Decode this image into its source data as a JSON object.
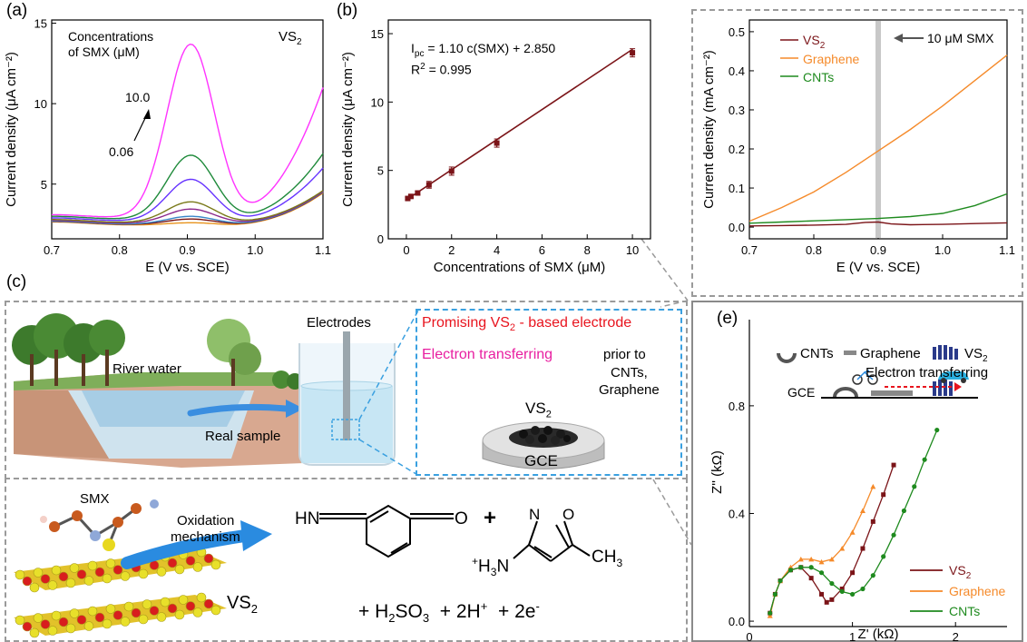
{
  "panels": {
    "a": "(a)",
    "b": "(b)",
    "c": "(c)",
    "e": "(e)"
  },
  "colors": {
    "vs2": "#7b1418",
    "graphene": "#f58a2a",
    "cnts": "#1e8a1e",
    "fitline": "#7b1418",
    "magenta": "#ff33ff",
    "red_text": "#e8141e",
    "pink_text": "#e81ea0",
    "blue_dash": "#3aa0e0",
    "gray_bar": "#c8c8c8"
  },
  "chart_data": [
    {
      "id": "a",
      "type": "line",
      "xlabel": "E (V vs. SCE)",
      "ylabel": "Current density (μA cm⁻²)",
      "xlim": [
        0.7,
        1.1
      ],
      "ylim": [
        1.6,
        15.2
      ],
      "xticks": [
        0.7,
        0.8,
        0.9,
        1.0,
        1.1
      ],
      "yticks": [
        5,
        10,
        15
      ],
      "annotations": {
        "title_line1": "Concentrations",
        "title_line2": "of SMX (μM)",
        "material": "VS",
        "material_sub": "2",
        "high": "10.0",
        "low": "0.06"
      },
      "series_style": {
        "peak_center": 0.905,
        "peak_sigma": 0.035
      },
      "series": [
        {
          "color": "#e8941e",
          "base": 2.45,
          "peak": 0.15,
          "tail": 4.45
        },
        {
          "color": "#7a1616",
          "base": 2.48,
          "peak": 0.35,
          "tail": 4.5
        },
        {
          "color": "#3a86c8",
          "base": 2.5,
          "peak": 0.5,
          "tail": 4.52
        },
        {
          "color": "#8c2a8c",
          "base": 2.55,
          "peak": 0.9,
          "tail": 4.55
        },
        {
          "color": "#7a7a1a",
          "base": 2.6,
          "peak": 1.3,
          "tail": 4.6
        },
        {
          "color": "#6633ff",
          "base": 2.7,
          "peak": 2.6,
          "tail": 6.0
        },
        {
          "color": "#1e8a3a",
          "base": 2.8,
          "peak": 4.0,
          "tail": 6.9
        },
        {
          "color": "#ff33ff",
          "base": 2.9,
          "peak": 10.8,
          "tail": 11.0
        }
      ]
    },
    {
      "id": "b",
      "type": "scatter",
      "xlabel": "Concentrations of SMX (μM)",
      "ylabel": "Current density (μA cm⁻²)",
      "xlim": [
        -0.8,
        10.8
      ],
      "ylim": [
        0,
        16
      ],
      "xticks": [
        0,
        2,
        4,
        6,
        8,
        10
      ],
      "yticks": [
        0,
        5,
        10,
        15
      ],
      "equation": "I",
      "equation_sub": "pc",
      "equation_rest": " = 1.10 c(SMX) + 2.850",
      "r2": "R",
      "r2_sup": "2",
      "r2_rest": " = 0.995",
      "fit": {
        "slope": 1.1,
        "intercept": 2.85
      },
      "x": [
        0.06,
        0.2,
        0.5,
        1.0,
        2.0,
        4.0,
        10.0
      ],
      "y": [
        2.95,
        3.1,
        3.35,
        3.95,
        4.95,
        7.0,
        13.6
      ],
      "err": [
        0.1,
        0.1,
        0.15,
        0.25,
        0.3,
        0.3,
        0.3
      ]
    },
    {
      "id": "d",
      "type": "line",
      "xlabel": "E (V vs. SCE)",
      "ylabel": "Current density (mA cm⁻²)",
      "xlim": [
        0.7,
        1.1
      ],
      "ylim": [
        -0.03,
        0.53
      ],
      "xticks": [
        0.7,
        0.8,
        0.9,
        1.0,
        1.1
      ],
      "yticks": [
        0.0,
        0.1,
        0.2,
        0.3,
        0.4,
        0.5
      ],
      "marker_label": "10 μM SMX",
      "marker_x": 0.9,
      "series": [
        {
          "name": "VS",
          "name_sub": "2",
          "color": "#7b1418",
          "x": [
            0.7,
            0.75,
            0.8,
            0.85,
            0.88,
            0.9,
            0.92,
            0.95,
            1.0,
            1.05,
            1.1
          ],
          "y": [
            0.003,
            0.004,
            0.005,
            0.007,
            0.012,
            0.013,
            0.008,
            0.006,
            0.007,
            0.009,
            0.011
          ]
        },
        {
          "name": "Graphene",
          "color": "#f58a2a",
          "x": [
            0.7,
            0.75,
            0.8,
            0.85,
            0.9,
            0.95,
            1.0,
            1.05,
            1.1
          ],
          "y": [
            0.015,
            0.05,
            0.09,
            0.14,
            0.195,
            0.25,
            0.31,
            0.375,
            0.44
          ]
        },
        {
          "name": "CNTs",
          "color": "#1e8a1e",
          "x": [
            0.7,
            0.75,
            0.8,
            0.85,
            0.9,
            0.95,
            1.0,
            1.05,
            1.1
          ],
          "y": [
            0.01,
            0.013,
            0.016,
            0.019,
            0.022,
            0.027,
            0.035,
            0.055,
            0.085
          ]
        }
      ]
    },
    {
      "id": "e",
      "type": "scatter",
      "xlabel": "Z' (kΩ)",
      "ylabel": "Z'' (kΩ)",
      "xlim": [
        0,
        2.5
      ],
      "ylim": [
        -0.02,
        1.12
      ],
      "xticks": [
        0,
        1,
        2
      ],
      "yticks": [
        0.0,
        0.4,
        0.8
      ],
      "series": [
        {
          "name": "VS",
          "name_sub": "2",
          "color": "#7b1418",
          "marker": "square",
          "x": [
            0.2,
            0.25,
            0.3,
            0.4,
            0.5,
            0.6,
            0.7,
            0.75,
            0.8,
            0.9,
            1.0,
            1.1,
            1.2,
            1.3,
            1.4
          ],
          "y": [
            0.03,
            0.1,
            0.15,
            0.19,
            0.2,
            0.16,
            0.1,
            0.07,
            0.08,
            0.12,
            0.18,
            0.27,
            0.37,
            0.47,
            0.58
          ]
        },
        {
          "name": "Graphene",
          "color": "#f58a2a",
          "marker": "triangle",
          "x": [
            0.2,
            0.25,
            0.3,
            0.4,
            0.5,
            0.6,
            0.7,
            0.8,
            0.9,
            1.0,
            1.1,
            1.2
          ],
          "y": [
            0.02,
            0.1,
            0.15,
            0.2,
            0.23,
            0.23,
            0.22,
            0.23,
            0.27,
            0.33,
            0.41,
            0.5
          ]
        },
        {
          "name": "CNTs",
          "color": "#1e8a1e",
          "marker": "circle",
          "x": [
            0.2,
            0.25,
            0.3,
            0.4,
            0.5,
            0.6,
            0.7,
            0.8,
            0.9,
            1.0,
            1.1,
            1.2,
            1.3,
            1.4,
            1.5,
            1.6,
            1.7,
            1.82
          ],
          "y": [
            0.03,
            0.1,
            0.15,
            0.19,
            0.2,
            0.2,
            0.18,
            0.14,
            0.11,
            0.1,
            0.12,
            0.17,
            0.24,
            0.32,
            0.41,
            0.5,
            0.6,
            0.71
          ]
        }
      ],
      "inset": {
        "cnts": "CNTs",
        "graphene": "Graphene",
        "vs2": "VS",
        "vs2_sub": "2",
        "transfer": "Electron transferring",
        "gce": "GCE"
      }
    }
  ],
  "scheme": {
    "river_water": "River water",
    "electrodes": "Electrodes",
    "real_sample": "Real sample",
    "promising_a": "Promising VS",
    "promising_sub": "2",
    "promising_b": " - based electrode",
    "transfer": "Electron transferring",
    "prior": "prior to",
    "prior2": "CNTs,",
    "prior3": "Graphene",
    "vs2": "VS",
    "vs2_sub": "2",
    "gce": "GCE"
  },
  "mechanism": {
    "smx": "SMX",
    "oxidation1": "Oxidation",
    "oxidation2": "mechanism",
    "vs2": "VS",
    "vs2_sub": "2",
    "hn": "HN",
    "o": "O",
    "plus": "+",
    "n": "N",
    "o2": "O",
    "h3n": "H",
    "h3n_sub": "3",
    "h3n_n": "N",
    "ch3": "CH",
    "ch3_sub": "3",
    "products": "+  H",
    "h2so3_sub": "2",
    "so3": "SO",
    "so3_sub": "3",
    "h_plus": "+  2H",
    "h_sup": "+",
    "e_minus": "+  2e",
    "e_sup": "-"
  }
}
